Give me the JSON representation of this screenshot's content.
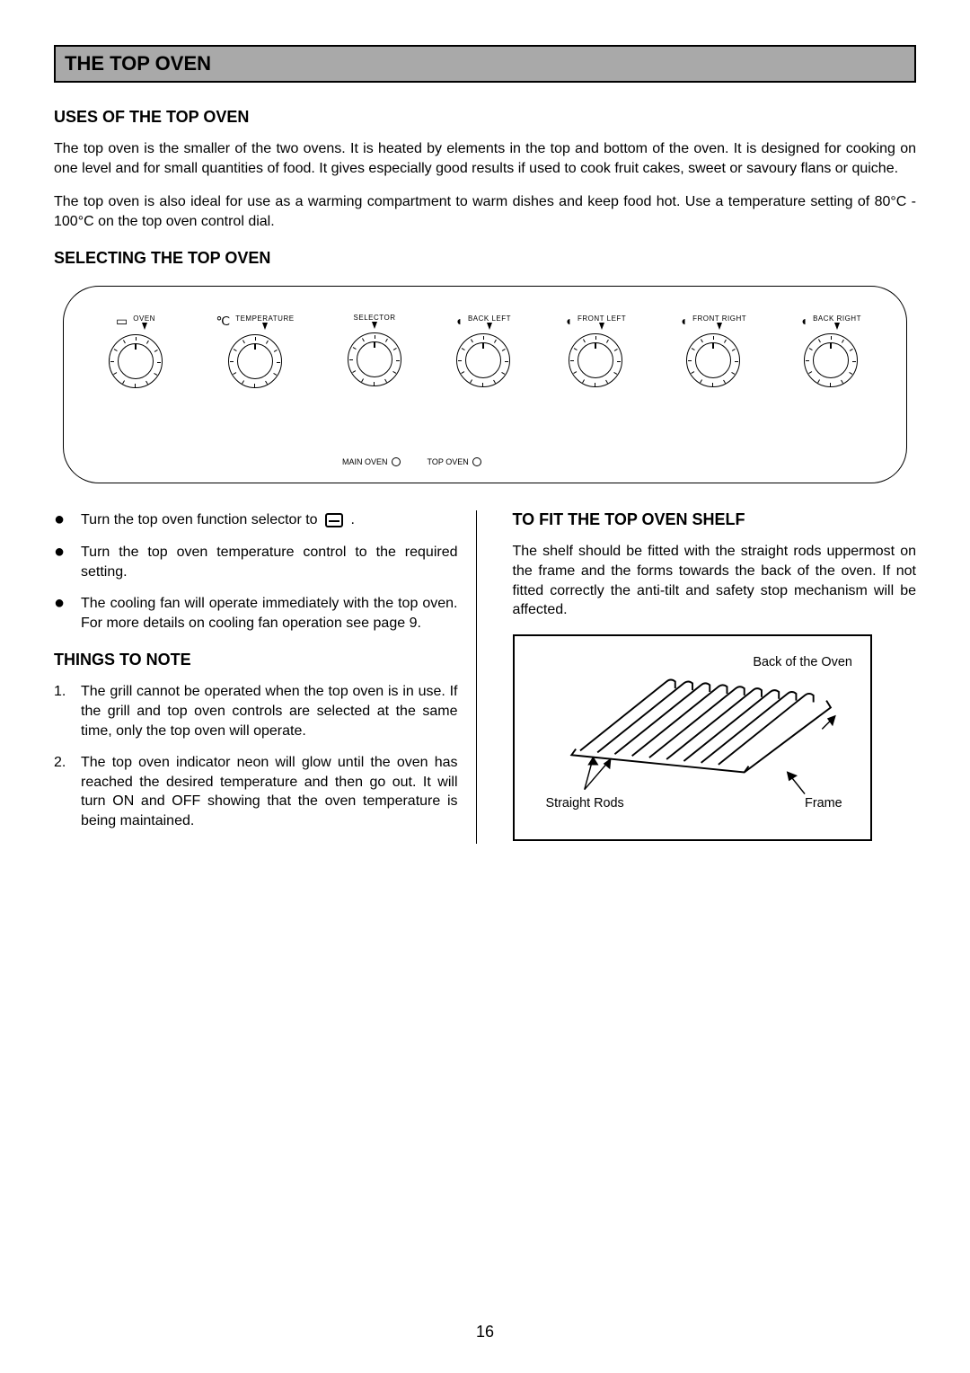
{
  "page_number": "16",
  "title": "THE TOP OVEN",
  "sections": {
    "uses": {
      "heading": "USES OF THE TOP OVEN",
      "p1": "The top oven is the smaller of the two ovens.  It is heated by elements in the top and bottom of the oven.  It is designed for cooking on one level and for small quantities of food.  It gives especially good results if used to cook fruit cakes, sweet or savoury flans or quiche.",
      "p2": "The top oven is also ideal for use as a warming compartment to warm dishes and keep food hot.  Use a temperature setting of 80°C - 100°C on the top oven control dial."
    },
    "selecting": {
      "heading": "SELECTING THE TOP OVEN"
    },
    "bullets": {
      "b1_pre": "Turn the top oven function selector to ",
      "b1_post": " .",
      "b2": "Turn the top oven temperature control to the required setting.",
      "b3": "The cooling fan will operate immediately with the top oven.  For more details on cooling fan operation see page 9."
    },
    "things": {
      "heading": "THINGS TO NOTE",
      "n1": "The grill cannot be operated when the top oven is in use.  If the grill and top oven controls are selected at the same time, only the top oven will operate.",
      "n2": "The top oven indicator neon will glow until the oven has reached the desired temperature and then go out.  It will turn ON and OFF showing that the oven temperature is being maintained."
    },
    "fit_shelf": {
      "heading": "TO FIT THE TOP OVEN SHELF",
      "p1": "The shelf should be fitted with the straight rods uppermost on the frame and the forms towards the back of the oven.  If not fitted correctly the anti-tilt and safety stop mechanism will be affected.",
      "label_back": "Back of the Oven",
      "label_rods": "Straight Rods",
      "label_frame": "Frame"
    }
  },
  "panel": {
    "dials": [
      {
        "label": "OVEN",
        "icon": "▭"
      },
      {
        "label": "TEMPERATURE",
        "icon": "℃"
      },
      {
        "label": "SELECTOR",
        "icon": ""
      },
      {
        "label": "BACK LEFT",
        "icon": "◖"
      },
      {
        "label": "FRONT LEFT",
        "icon": "◖"
      },
      {
        "label": "FRONT RIGHT",
        "icon": "◖"
      },
      {
        "label": "BACK RIGHT",
        "icon": "◖"
      }
    ],
    "bottom_labels": {
      "main": "MAIN OVEN",
      "top": "TOP OVEN"
    }
  },
  "colors": {
    "titlebar_bg": "#a9a9a9",
    "border": "#000000",
    "text": "#000000",
    "page_bg": "#ffffff"
  },
  "typography": {
    "title_size_pt": 16,
    "heading_size_pt": 13,
    "body_size_pt": 12,
    "font_family": "Arial"
  }
}
